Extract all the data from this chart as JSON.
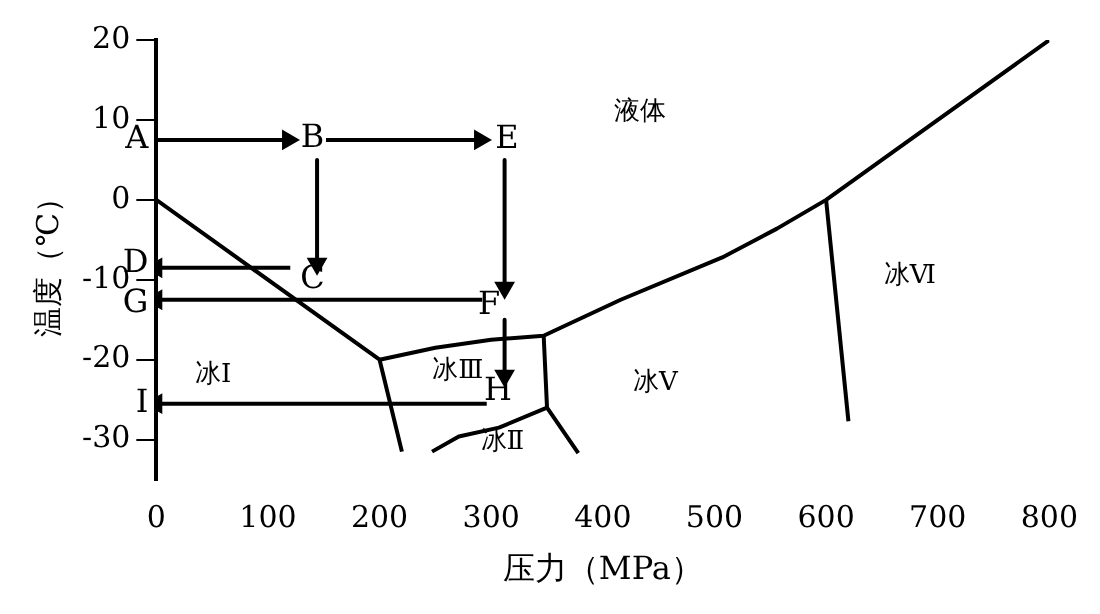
{
  "chart_data": {
    "type": "line",
    "xlabel": "压力（MPa）",
    "ylabel": "温度（℃）",
    "xlim": [
      0,
      800
    ],
    "ylim": [
      -35,
      20
    ],
    "xticks": [
      0,
      100,
      200,
      300,
      400,
      500,
      600,
      700,
      800
    ],
    "yticks": [
      -30,
      -20,
      -10,
      0,
      10,
      20
    ],
    "grid": false,
    "legend": false,
    "marker": "none",
    "line_style": "solid",
    "series": [
      {
        "color": "#000000",
        "x": [
          0,
          200,
          220
        ],
        "values": [
          0,
          -20,
          -31.5
        ]
      },
      {
        "color": "#000000",
        "x": [
          200,
          250,
          300,
          347,
          356,
          416,
          507,
          556,
          600,
          660,
          800
        ],
        "values": [
          -20,
          -18.5,
          -17.5,
          -17,
          -16.4,
          -12.5,
          -7.2,
          -3.6,
          0,
          6,
          20
        ]
      },
      {
        "color": "#000000",
        "x": [
          347,
          350,
          378
        ],
        "values": [
          -17,
          -26,
          -31.7
        ]
      },
      {
        "color": "#000000",
        "x": [
          350,
          307,
          271,
          247
        ],
        "values": [
          -26,
          -28.5,
          -29.6,
          -31.5
        ]
      },
      {
        "color": "#000000",
        "x": [
          600,
          620
        ],
        "values": [
          0,
          -27.7
        ]
      },
      {
        "color": "#000000",
        "marker": "triangle",
        "x": [
          0,
          118
        ],
        "values": [
          7.5,
          7.5
        ]
      },
      {
        "color": "#000000",
        "marker": "triangle",
        "x": [
          152,
          290
        ],
        "values": [
          7.5,
          7.5
        ]
      },
      {
        "color": "#000000",
        "marker": "triangle",
        "x": [
          144,
          144
        ],
        "values": [
          5,
          -8
        ]
      },
      {
        "color": "#000000",
        "marker": "triangle",
        "x": [
          120,
          0
        ],
        "values": [
          -8.5,
          -8.5
        ]
      },
      {
        "color": "#000000",
        "marker": "triangle",
        "x": [
          312,
          312
        ],
        "values": [
          5,
          -11
        ]
      },
      {
        "color": "#000000",
        "marker": "triangle",
        "x": [
          292,
          0
        ],
        "values": [
          -12.5,
          -12.5
        ]
      },
      {
        "color": "#000000",
        "marker": "triangle",
        "x": [
          312,
          312
        ],
        "values": [
          -15,
          -22
        ]
      },
      {
        "color": "#000000",
        "marker": "triangle",
        "x": [
          296,
          0
        ],
        "values": [
          -25.5,
          -25.5
        ]
      }
    ],
    "annotations": [
      {
        "text": "A",
        "x": 0,
        "y": 7.5
      },
      "B",
      "E",
      {
        "text": "C",
        "x": 140,
        "y": -10
      },
      {
        "text": "D",
        "x": 0,
        "y": -8
      },
      "F",
      {
        "text": "G",
        "x": 0,
        "y": -13
      },
      {
        "text": "H",
        "x": 306,
        "y": -24
      },
      {
        "text": "I",
        "x": 0,
        "y": -25.5
      },
      "液体",
      "冰Ⅰ",
      "冰Ⅲ",
      "冰Ⅱ",
      "冰Ⅴ",
      "冰Ⅵ"
    ]
  }
}
